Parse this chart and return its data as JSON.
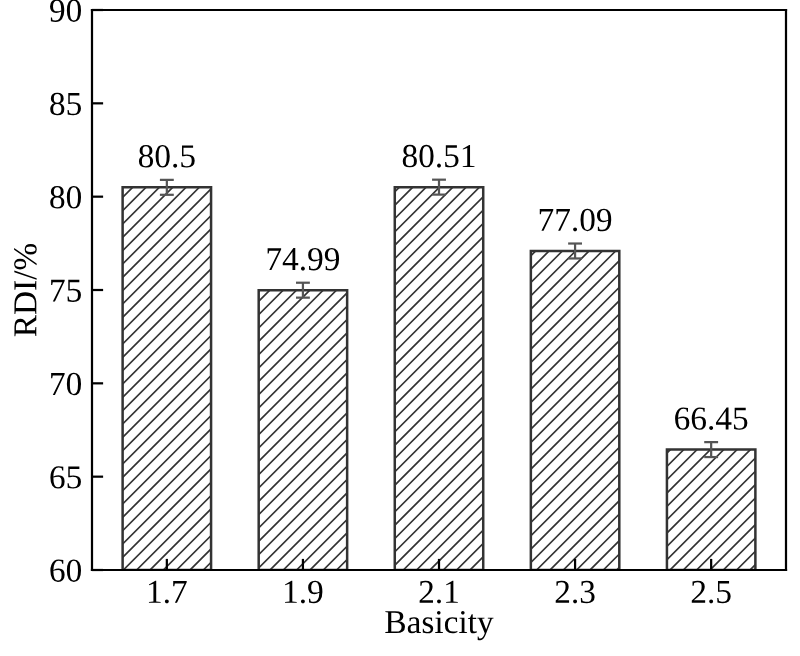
{
  "chart_data": {
    "type": "bar",
    "xlabel": "Basicity",
    "ylabel": "RDI/%",
    "categories": [
      "1.7",
      "1.9",
      "2.1",
      "2.3",
      "2.5"
    ],
    "values": [
      80.5,
      74.99,
      80.51,
      77.09,
      66.45
    ],
    "errors": [
      0.4,
      0.4,
      0.4,
      0.4,
      0.4
    ],
    "color": "#333333",
    "ylim": [
      60,
      90
    ],
    "yticks": [
      60,
      65,
      70,
      75,
      80,
      85,
      90
    ],
    "data_labels": true,
    "grid": false
  }
}
